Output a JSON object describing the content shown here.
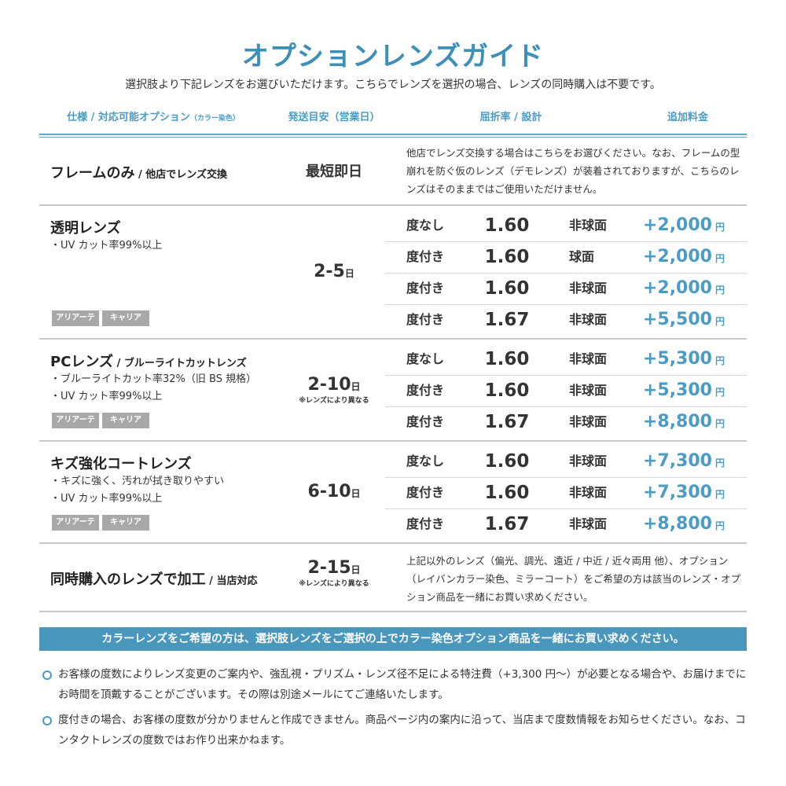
{
  "title": "オプションレンズガイド",
  "subtitle": "選択肢より下記レンズをお選びいただけます。こちらでレンズを選択の場合、レンズの同時購入は不要です。",
  "headers": {
    "spec": "仕様 / 対応可能オプション",
    "spec_small": "（カラー染色）",
    "shipping": "発送目安（営業日）",
    "index": "屈折率 / 設計",
    "price": "追加料金"
  },
  "frame_only": {
    "name": "フレームのみ",
    "name_sub": " / 他店でレンズ交換",
    "shipping": "最短即日",
    "desc": "他店でレンズ交換する場合はこちらをお選びください。なお、フレームの型崩れを防ぐ仮のレンズ（デモレンズ）が装着されておりますが、こちらのレンズはそのままではご使用いただけません。"
  },
  "tags": [
    "アリアーテ",
    "キャリア"
  ],
  "day_unit": "日",
  "varies_note": "※レンズにより異なる",
  "yen": "円",
  "sections": [
    {
      "name": "透明レンズ",
      "name_sub": "",
      "bullets": [
        "・UV カット率99%以上"
      ],
      "shipping": "2-5",
      "note": "",
      "rows": [
        {
          "type": "度なし",
          "index": "1.60",
          "design": "非球面",
          "price": "+2,000"
        },
        {
          "type": "度付き",
          "index": "1.60",
          "design": "球面",
          "price": "+2,000"
        },
        {
          "type": "度付き",
          "index": "1.60",
          "design": "非球面",
          "price": "+2,000"
        },
        {
          "type": "度付き",
          "index": "1.67",
          "design": "非球面",
          "price": "+5,500"
        }
      ]
    },
    {
      "name": "PCレンズ",
      "name_sub": " / ブルーライトカットレンズ",
      "bullets": [
        "・ブルーライトカット率32%（旧 BS 規格）",
        "・UV カット率99%以上"
      ],
      "shipping": "2-10",
      "note": "※レンズにより異なる",
      "rows": [
        {
          "type": "度なし",
          "index": "1.60",
          "design": "非球面",
          "price": "+5,300"
        },
        {
          "type": "度付き",
          "index": "1.60",
          "design": "非球面",
          "price": "+5,300"
        },
        {
          "type": "度付き",
          "index": "1.67",
          "design": "非球面",
          "price": "+8,800"
        }
      ]
    },
    {
      "name": "キズ強化コートレンズ",
      "name_sub": "",
      "bullets": [
        "・キズに強く、汚れが拭き取りやすい",
        "・UV カット率99%以上"
      ],
      "shipping": "6-10",
      "note": "",
      "rows": [
        {
          "type": "度なし",
          "index": "1.60",
          "design": "非球面",
          "price": "+7,300"
        },
        {
          "type": "度付き",
          "index": "1.60",
          "design": "非球面",
          "price": "+7,300"
        },
        {
          "type": "度付き",
          "index": "1.67",
          "design": "非球面",
          "price": "+8,800"
        }
      ]
    }
  ],
  "in_store": {
    "name": "同時購入のレンズで加工",
    "name_sub": " / 当店対応",
    "shipping": "2-15",
    "note": "※レンズにより異なる",
    "desc": "上記以外のレンズ（偏光、調光、遠近 / 中近 / 近々両用 他）、オプション（レイバンカラー染色、ミラーコート）をご希望の方は該当のレンズ・オプション商品を一緒にお買い求めください。"
  },
  "banner": "カラーレンズをご希望の方は、選択肢レンズをご選択の上でカラー染色オプション商品を一緒にお買い求めください。",
  "notes": [
    "お客様の度数によりレンズ変更のご案内や、強乱視・プリズム・レンズ径不足による特注費（+3,300 円〜）が必要となる場合や、お届けまでにお時間を頂戴することがございます。その際は別途メールにてご連絡いたします。",
    "度付きの場合、お客様の度数が分かりませんと作成できません。商品ページ内の案内に沿って、当店まで度数情報をお知らせください。なお、コンタクトレンズの度数ではお作り出来かねます。"
  ],
  "colors": {
    "accent": "#4a9cc4",
    "title": "#3d8fb8",
    "tag": "#a8a8a8",
    "banner": "#4a97bd"
  }
}
